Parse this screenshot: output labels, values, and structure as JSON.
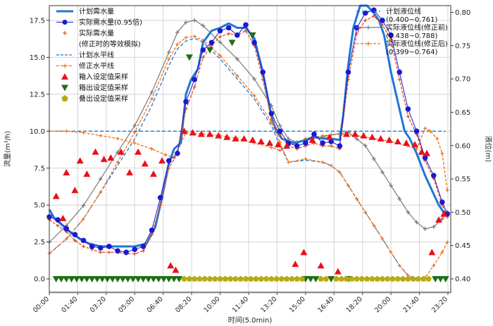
{
  "chart_data": {
    "type": "line",
    "xlabel": "时间(5.0min)",
    "ylabel_left": "流量(m³/h)",
    "ylabel_right": "液位(m)",
    "x_ticks": [
      "00:00",
      "01:40",
      "03:20",
      "05:00",
      "06:40",
      "08:20",
      "10:00",
      "11:40",
      "13:20",
      "15:00",
      "16:40",
      "18:20",
      "20:00",
      "21:40",
      "23:20"
    ],
    "x_range": [
      0,
      23.5
    ],
    "y_left_range": [
      -0.9,
      18.5
    ],
    "y_left_ticks": [
      "0.0",
      "2.5",
      "5.0",
      "7.5",
      "10.0",
      "12.5",
      "15.0",
      "17.5"
    ],
    "y_right_range": [
      0.38,
      0.81
    ],
    "y_right_ticks": [
      "0.40",
      "0.45",
      "0.50",
      "0.55",
      "0.60",
      "0.65",
      "0.70",
      "0.75",
      "0.80"
    ],
    "grid": true,
    "legend_left_placement": "top-left",
    "legend_right_placement": "top-right",
    "legend_left": [
      {
        "key": "plan_flow",
        "label": "计划需水量"
      },
      {
        "key": "actual_flow",
        "label": "实际需水量(0.95倍)"
      },
      {
        "key": "corrected_flow",
        "label": "实际需水量"
      },
      {
        "key": "corrected_flow",
        "label": "(修正时的等效模拟)"
      },
      {
        "key": "plan_level_line",
        "label": "计划水平线"
      },
      {
        "key": "corrected_level_line",
        "label": "修正水平线"
      },
      {
        "key": "tank_in",
        "label": "箱入设定值采样"
      },
      {
        "key": "tank_out",
        "label": "箱出设定值采样"
      },
      {
        "key": "stack_out",
        "label": "叠出设定值采样"
      }
    ],
    "legend_right": [
      {
        "key": "plan_level",
        "label": "计划液位线",
        "range": "(0.400~0.761)"
      },
      {
        "key": "actual_level_before",
        "label": "实际液位线(修正前)",
        "range": "(0.438~0.788)"
      },
      {
        "key": "actual_level_after",
        "label": "实际液位线(修正后)",
        "range": "(0.399~0.764)"
      }
    ],
    "colors": {
      "plan_flow": "#1f77d4",
      "actual_flow": "#1a1ad0",
      "corrected_flow": "#e0502a",
      "plan_level_line": "#1f77d4",
      "corrected_level_line": "#f07020",
      "tank_in": "#e8101a",
      "tank_out": "#1e6e14",
      "stack_out": "#b8aa10",
      "plan_level": "#1f77d4",
      "actual_level_before": "#7a7a7a",
      "actual_level_after": "#f07020"
    },
    "series": [
      {
        "key": "plan_flow",
        "axis": "left",
        "style": "line",
        "x": [
          0,
          0.3,
          0.8,
          1.3,
          1.8,
          2.3,
          3,
          4,
          5,
          5.7,
          6.2,
          6.6,
          7,
          7.3,
          7.7,
          8,
          8.3,
          8.7,
          9,
          9.5,
          10,
          10.5,
          11,
          11.5,
          12,
          12.5,
          13,
          13.3,
          13.6,
          14,
          14.4,
          15,
          15.5,
          16,
          16.5,
          17,
          17.2,
          17.5,
          17.8,
          18.2,
          18.6,
          19,
          19.3,
          19.6,
          20,
          20.4,
          20.8,
          21.1,
          21.5,
          22,
          22.4,
          22.8,
          23.2
        ],
        "y": [
          4.7,
          4.1,
          3.6,
          3.1,
          2.7,
          2.4,
          2.2,
          2.2,
          2.2,
          2.4,
          3.5,
          5.5,
          7.8,
          8.8,
          9.2,
          12.5,
          13.5,
          14.2,
          16.0,
          16.8,
          17.0,
          17.3,
          17.0,
          17.0,
          16.3,
          14.0,
          11.0,
          10.0,
          9.5,
          9.3,
          9.2,
          9.4,
          9.6,
          9.5,
          9.5,
          9.4,
          11.0,
          14.5,
          17.0,
          18.5,
          18.5,
          18.0,
          17.5,
          16.5,
          14.0,
          12.0,
          10.0,
          9.5,
          8.5,
          7.0,
          6.0,
          5.0,
          4.3
        ]
      },
      {
        "key": "actual_flow",
        "axis": "left",
        "style": "marker-circle",
        "x": [
          0,
          0.5,
          1,
          1.5,
          2,
          2.5,
          3,
          3.5,
          4,
          4.5,
          5,
          5.5,
          6,
          6.5,
          7,
          7.5,
          8,
          8.5,
          9,
          9.5,
          10,
          10.5,
          11,
          11.5,
          12,
          12.5,
          13,
          13.5,
          14,
          14.5,
          15,
          15.5,
          16,
          16.5,
          17,
          17.5,
          18,
          18.5,
          19,
          19.5,
          20,
          20.5,
          21,
          21.5,
          22,
          22.5,
          23,
          23.3
        ],
        "y": [
          4.2,
          4.0,
          3.4,
          3.0,
          2.6,
          2.2,
          2.1,
          2.2,
          1.9,
          1.8,
          2.0,
          2.2,
          3.3,
          5.5,
          8.0,
          8.5,
          12.0,
          13.5,
          15.5,
          16.0,
          16.8,
          17.0,
          16.5,
          17.2,
          16.0,
          14.0,
          11.2,
          10.0,
          9.2,
          9.0,
          9.2,
          9.8,
          9.2,
          9.3,
          9.0,
          14.0,
          17.0,
          18.0,
          18.2,
          17.5,
          16.5,
          14.0,
          11.5,
          10.0,
          8.2,
          7.0,
          5.2,
          4.4
        ]
      },
      {
        "key": "corrected_flow",
        "axis": "left",
        "style": "dashed-plus",
        "x": [
          0,
          0.5,
          1,
          1.5,
          2,
          2.5,
          3,
          3.5,
          4,
          4.5,
          5,
          5.5,
          6,
          6.5,
          7,
          7.5,
          8,
          8.5,
          9,
          9.5,
          10,
          10.5,
          11,
          11.5,
          12,
          12.5,
          13,
          13.5,
          14,
          14.5,
          15,
          15.5,
          16,
          16.5,
          17,
          17.5,
          18,
          18.5,
          19,
          19.5,
          20,
          20.5,
          21,
          21.5,
          22,
          22.5,
          23,
          23.3
        ],
        "y": [
          4.0,
          3.6,
          3.2,
          2.6,
          2.2,
          2.0,
          1.8,
          1.8,
          1.8,
          1.7,
          1.7,
          1.9,
          3.0,
          5.0,
          7.5,
          8.5,
          11.5,
          13.0,
          15.0,
          15.8,
          16.4,
          16.6,
          16.5,
          16.8,
          15.8,
          13.5,
          10.8,
          9.8,
          9.0,
          8.8,
          9.0,
          9.2,
          9.0,
          9.0,
          8.8,
          13.5,
          16.6,
          17.5,
          17.8,
          17.2,
          16.2,
          13.5,
          11.0,
          9.8,
          8.0,
          6.8,
          5.0,
          4.2
        ]
      },
      {
        "key": "plan_level_line",
        "axis": "left",
        "style": "dashed",
        "x": [
          0,
          23.2
        ],
        "y": [
          10.0,
          10.0
        ]
      },
      {
        "key": "corrected_level_line",
        "axis": "left",
        "style": "dashed-plus",
        "x": [
          0,
          1,
          2,
          3,
          4,
          5,
          6,
          6.8,
          7.3,
          7.6,
          8,
          9,
          10,
          11,
          12,
          13,
          13.5,
          14,
          15,
          16,
          17,
          18,
          19,
          20,
          21,
          21.5,
          22,
          22.3,
          22.7,
          23,
          23.3
        ],
        "y": [
          10.0,
          10.0,
          9.9,
          9.7,
          9.5,
          9.2,
          8.8,
          8.4,
          8.2,
          9.0,
          9.9,
          9.8,
          9.7,
          9.5,
          9.2,
          8.9,
          8.7,
          9.0,
          9.5,
          9.7,
          9.8,
          9.7,
          9.5,
          9.3,
          9.0,
          8.8,
          10.2,
          10.0,
          9.5,
          8.5,
          6.0
        ]
      },
      {
        "key": "plan_level",
        "axis": "right",
        "style": "dashed",
        "x": [
          0,
          1,
          2,
          3,
          4,
          5,
          6,
          7,
          7.5,
          8,
          8.5,
          9,
          10,
          11,
          12,
          13,
          13.5,
          14,
          15,
          16,
          16.5,
          17,
          17.5,
          18,
          18.5,
          19,
          19.5,
          20,
          20.5,
          21,
          21.5,
          22
        ],
        "y": [
          0.438,
          0.46,
          0.49,
          0.53,
          0.57,
          0.61,
          0.66,
          0.72,
          0.745,
          0.757,
          0.761,
          0.755,
          0.73,
          0.7,
          0.67,
          0.63,
          0.6,
          0.575,
          0.578,
          0.575,
          0.57,
          0.56,
          0.54,
          0.52,
          0.5,
          0.48,
          0.46,
          0.44,
          0.42,
          0.405,
          0.4,
          0.4
        ]
      },
      {
        "key": "actual_level_before",
        "axis": "right",
        "style": "plus-line",
        "x": [
          0,
          1,
          2,
          3,
          4,
          5,
          6,
          7,
          7.5,
          8,
          8.5,
          9,
          10,
          11,
          12,
          13,
          13.5,
          14,
          14.5,
          15,
          16,
          16.5,
          17,
          17.5,
          18,
          18.5,
          19,
          19.5,
          20,
          20.5,
          21,
          21.5,
          22,
          22.5,
          23,
          23.3
        ],
        "y": [
          0.455,
          0.48,
          0.51,
          0.55,
          0.59,
          0.63,
          0.68,
          0.74,
          0.77,
          0.785,
          0.788,
          0.78,
          0.755,
          0.73,
          0.7,
          0.66,
          0.63,
          0.61,
          0.605,
          0.608,
          0.613,
          0.616,
          0.618,
          0.62,
          0.61,
          0.6,
          0.58,
          0.56,
          0.54,
          0.52,
          0.5,
          0.485,
          0.475,
          0.478,
          0.49,
          0.5
        ]
      },
      {
        "key": "actual_level_after",
        "axis": "right",
        "style": "dashed-plus",
        "x": [
          0,
          1,
          2,
          3,
          4,
          5,
          6,
          7,
          7.5,
          8,
          8.5,
          9,
          10,
          11,
          12,
          13,
          13.5,
          14,
          15,
          16,
          16.5,
          17,
          17.5,
          18,
          18.5,
          19,
          19.5,
          20,
          20.5,
          21,
          21.5,
          22,
          22.5,
          23,
          23.3
        ],
        "y": [
          0.438,
          0.46,
          0.49,
          0.53,
          0.575,
          0.62,
          0.67,
          0.73,
          0.752,
          0.762,
          0.764,
          0.758,
          0.735,
          0.705,
          0.675,
          0.635,
          0.605,
          0.575,
          0.58,
          0.575,
          0.57,
          0.56,
          0.54,
          0.52,
          0.5,
          0.48,
          0.46,
          0.44,
          0.42,
          0.405,
          0.399,
          0.402,
          0.42,
          0.44,
          0.455
        ]
      }
    ],
    "samples": {
      "tank_in": {
        "x": [
          0.4,
          0.8,
          1.0,
          1.5,
          1.8,
          2.2,
          2.7,
          3.2,
          3.6,
          4.2,
          4.7,
          5.2,
          5.6,
          6.1,
          6.6,
          7.1,
          7.4,
          7.9,
          8.4,
          8.9,
          9.4,
          9.9,
          10.4,
          10.9,
          11.4,
          11.9,
          12.4,
          12.9,
          13.4,
          13.9,
          14.4,
          14.9,
          15.4,
          15.9,
          16.4,
          16.9,
          17.4,
          17.9,
          18.4,
          18.9,
          19.4,
          19.9,
          20.4,
          20.9,
          21.4,
          21.8,
          22.1,
          22.4,
          22.8,
          23.1
        ],
        "y": [
          5.6,
          4.1,
          7.2,
          6.0,
          8.0,
          7.1,
          8.6,
          8.1,
          8.2,
          8.6,
          7.2,
          8.6,
          7.8,
          7.1,
          8.0,
          0.9,
          0.6,
          10.0,
          9.9,
          9.8,
          9.8,
          9.7,
          9.6,
          9.5,
          9.5,
          9.4,
          9.3,
          9.2,
          9.1,
          9.0,
          1.0,
          1.8,
          9.4,
          0.9,
          9.6,
          0.5,
          9.8,
          9.8,
          9.7,
          9.6,
          9.5,
          9.4,
          9.3,
          9.2,
          9.1,
          8.6,
          8.5,
          1.8,
          4.0,
          4.4
        ]
      },
      "tank_out": {
        "x": [
          0.4,
          0.7,
          1.0,
          1.3,
          1.6,
          1.9,
          2.2,
          2.5,
          2.8,
          3.1,
          3.4,
          3.7,
          4.0,
          4.3,
          4.6,
          4.9,
          5.2,
          5.5,
          5.8,
          6.1,
          6.4,
          6.7,
          7.0,
          7.3,
          7.6,
          15.0,
          15.3,
          15.6,
          16.5,
          17.5,
          22.6,
          22.9,
          23.2,
          8.2,
          9.4,
          10.7,
          11.9
        ],
        "y": [
          0.0,
          0.0,
          0.0,
          0.0,
          0.0,
          0.0,
          0.0,
          0.0,
          0.0,
          0.0,
          0.0,
          0.0,
          0.0,
          0.0,
          0.0,
          0.0,
          0.0,
          0.0,
          0.0,
          0.0,
          0.0,
          0.0,
          0.0,
          0.0,
          0.0,
          0.0,
          0.0,
          0.0,
          0.0,
          0.0,
          0.0,
          0.0,
          0.0,
          15.0,
          15.5,
          16.0,
          16.5
        ]
      },
      "stack_out": {
        "x": [
          7.9,
          8.2,
          8.5,
          8.8,
          9.1,
          9.4,
          9.7,
          10.0,
          10.3,
          10.6,
          10.9,
          11.2,
          11.5,
          11.8,
          12.1,
          12.4,
          12.7,
          13.0,
          13.3,
          13.6,
          13.9,
          14.2,
          14.5,
          14.8,
          15.9,
          16.2,
          16.8,
          17.1,
          17.4,
          17.7,
          18.0,
          18.3,
          18.6,
          18.9,
          19.2,
          19.5,
          19.8,
          20.1,
          20.4,
          20.7,
          21.0,
          21.3,
          21.6,
          21.9,
          22.2
        ],
        "y": [
          0,
          0,
          0,
          0,
          0,
          0,
          0,
          0,
          0,
          0,
          0,
          0,
          0,
          0,
          0,
          0,
          0,
          0,
          0,
          0,
          0,
          0,
          0,
          0,
          0,
          0,
          0,
          0,
          0,
          0,
          0,
          0,
          0,
          0,
          0,
          0,
          0,
          0,
          0,
          0,
          0,
          0,
          0,
          0,
          0
        ]
      }
    }
  }
}
